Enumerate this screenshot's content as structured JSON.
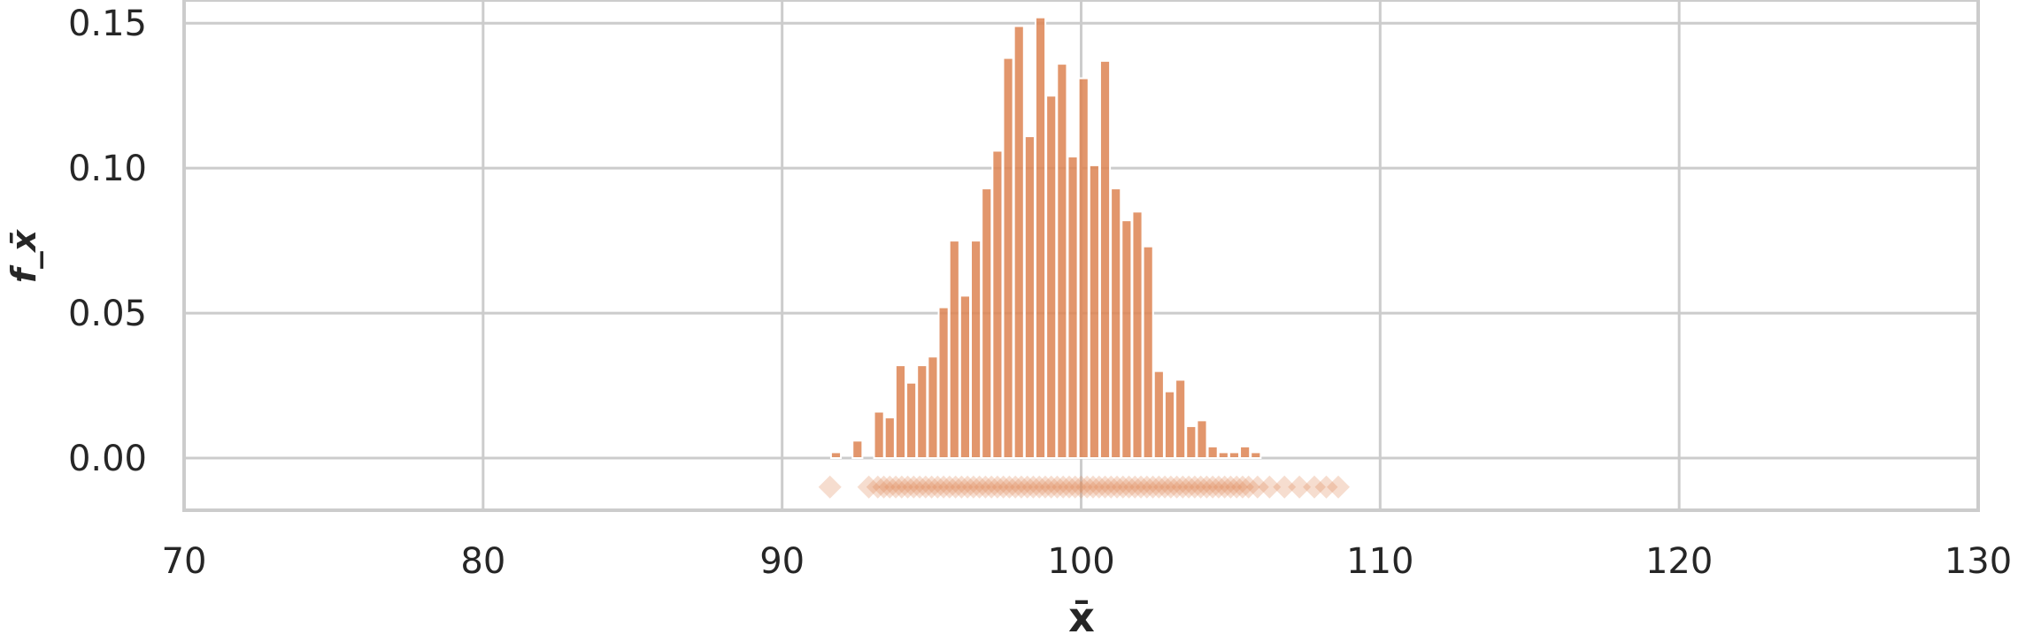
{
  "chart_data": {
    "type": "bar",
    "title": "",
    "xlabel": "x̄",
    "ylabel": "f_x̄",
    "xlim": [
      70,
      130
    ],
    "ylim": [
      -0.018,
      0.158
    ],
    "grid": true,
    "x_ticks": [
      70,
      80,
      90,
      100,
      110,
      120,
      130
    ],
    "x_tick_labels": [
      "70",
      "80",
      "90",
      "100",
      "110",
      "120",
      "130"
    ],
    "y_ticks": [
      0.0,
      0.05,
      0.1,
      0.15
    ],
    "y_tick_labels": [
      "0.00",
      "0.05",
      "0.10",
      "0.15"
    ],
    "bar_color": "#dd8452",
    "bar_width": 0.33,
    "bins": [
      91.8,
      92.16,
      92.52,
      92.88,
      93.24,
      93.6,
      93.96,
      94.32,
      94.68,
      95.04,
      95.4,
      95.76,
      96.12,
      96.48,
      96.84,
      97.2,
      97.56,
      97.92,
      98.28,
      98.64,
      99.0,
      99.36,
      99.72,
      100.08,
      100.44,
      100.8,
      101.16,
      101.52,
      101.88,
      102.24,
      102.6,
      102.96,
      103.32,
      103.68,
      104.04,
      104.4,
      104.76,
      105.12,
      105.48,
      105.84,
      106.2,
      106.56,
      106.92,
      107.28,
      107.64,
      108.0,
      108.36
    ],
    "values": [
      0.002,
      0.0,
      0.006,
      0.0,
      0.016,
      0.014,
      0.032,
      0.026,
      0.032,
      0.035,
      0.052,
      0.075,
      0.056,
      0.075,
      0.093,
      0.106,
      0.138,
      0.149,
      0.111,
      0.152,
      0.125,
      0.136,
      0.104,
      0.131,
      0.101,
      0.137,
      0.093,
      0.082,
      0.085,
      0.073,
      0.03,
      0.023,
      0.027,
      0.011,
      0.013,
      0.004,
      0.002,
      0.002,
      0.004,
      0.002,
      0.0,
      0.0,
      0.0,
      0.0,
      0.0,
      0.0,
      0.0
    ],
    "rug": {
      "marker": "diamond",
      "y": -0.01,
      "color": "#dd8452",
      "x": [
        91.6,
        92.9,
        93.2,
        93.4,
        93.6,
        93.8,
        94.0,
        94.2,
        94.4,
        94.6,
        94.8,
        95.0,
        95.2,
        95.4,
        95.6,
        95.8,
        96.0,
        96.2,
        96.4,
        96.6,
        96.8,
        97.0,
        97.2,
        97.4,
        97.6,
        97.8,
        98.0,
        98.2,
        98.4,
        98.6,
        98.8,
        99.0,
        99.2,
        99.4,
        99.6,
        99.8,
        100.0,
        100.2,
        100.4,
        100.6,
        100.8,
        101.0,
        101.2,
        101.4,
        101.6,
        101.8,
        102.0,
        102.2,
        102.4,
        102.6,
        102.8,
        103.0,
        103.2,
        103.4,
        103.6,
        103.8,
        104.0,
        104.2,
        104.4,
        104.6,
        104.8,
        105.0,
        105.2,
        105.4,
        105.6,
        105.9,
        106.3,
        106.8,
        107.3,
        107.8,
        108.2,
        108.6
      ]
    }
  }
}
